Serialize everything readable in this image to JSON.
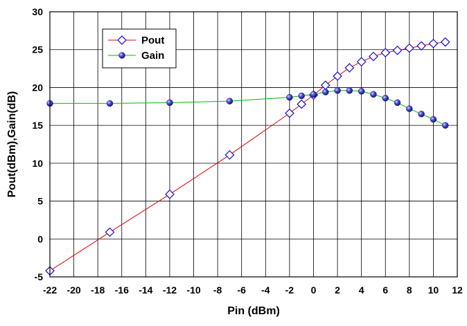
{
  "chart_data": {
    "type": "line",
    "xlabel": "Pin (dBm)",
    "ylabel": "Pout(dBm),Gain(dB)",
    "xlim": [
      -22,
      12
    ],
    "ylim": [
      -5,
      30
    ],
    "x_ticks": [
      -22,
      -20,
      -18,
      -16,
      -14,
      -12,
      -10,
      -8,
      -6,
      -4,
      -2,
      0,
      2,
      4,
      6,
      8,
      10,
      12
    ],
    "y_ticks": [
      -5,
      0,
      5,
      10,
      15,
      20,
      25,
      30
    ],
    "x_tick_labels": [
      "-22",
      "-20",
      "-18",
      "-16",
      "-14",
      "-12",
      "-10",
      "-8",
      "-6",
      "-4",
      "-2",
      "0",
      "2",
      "4",
      "6",
      "8",
      "10",
      "12"
    ],
    "y_tick_labels": [
      "-5",
      "0",
      "5",
      "10",
      "15",
      "20",
      "25",
      "30"
    ],
    "grid": true,
    "legend_position": "top-left",
    "series": [
      {
        "name": "Pout",
        "color": "#e00000",
        "marker": "diamond",
        "marker_color": "#2a1acc",
        "x": [
          -22,
          -17,
          -12,
          -7,
          -2,
          -1,
          0,
          1,
          2,
          3,
          4,
          5,
          6,
          7,
          8,
          9,
          10,
          11
        ],
        "y": [
          -4.2,
          0.9,
          5.9,
          11.1,
          16.6,
          17.8,
          19.0,
          20.3,
          21.5,
          22.6,
          23.4,
          24.1,
          24.6,
          24.9,
          25.2,
          25.5,
          25.8,
          26.0
        ]
      },
      {
        "name": "Gain",
        "color": "#00bb00",
        "marker": "sphere",
        "marker_color": "#1a1aa0",
        "x": [
          -22,
          -17,
          -12,
          -7,
          -2,
          -1,
          0,
          1,
          2,
          3,
          4,
          5,
          6,
          7,
          8,
          9,
          10,
          11
        ],
        "y": [
          17.9,
          17.9,
          18.0,
          18.2,
          18.7,
          18.9,
          19.1,
          19.4,
          19.6,
          19.6,
          19.5,
          19.1,
          18.6,
          18.0,
          17.2,
          16.5,
          15.8,
          15.0
        ]
      }
    ]
  }
}
